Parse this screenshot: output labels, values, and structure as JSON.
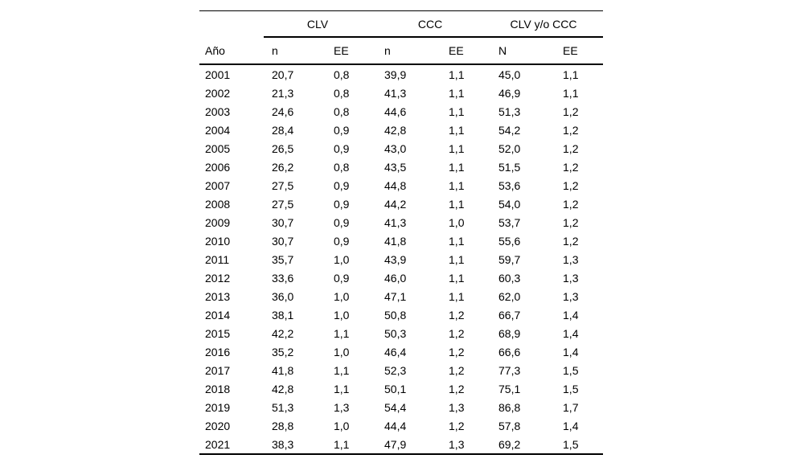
{
  "colors": {
    "background": "#ffffff",
    "text": "#000000",
    "rule": "#000000"
  },
  "chart_data": {
    "type": "table",
    "column_groups": [
      {
        "label": "CLV",
        "span": 2
      },
      {
        "label": "CCC",
        "span": 2
      },
      {
        "label": "CLV y/o CCC",
        "span": 2
      }
    ],
    "columns": [
      "Año",
      "n",
      "EE",
      "n",
      "EE",
      "N",
      "EE"
    ],
    "rows": [
      [
        "2001",
        "20,7",
        "0,8",
        "39,9",
        "1,1",
        "45,0",
        "1,1"
      ],
      [
        "2002",
        "21,3",
        "0,8",
        "41,3",
        "1,1",
        "46,9",
        "1,1"
      ],
      [
        "2003",
        "24,6",
        "0,8",
        "44,6",
        "1,1",
        "51,3",
        "1,2"
      ],
      [
        "2004",
        "28,4",
        "0,9",
        "42,8",
        "1,1",
        "54,2",
        "1,2"
      ],
      [
        "2005",
        "26,5",
        "0,9",
        "43,0",
        "1,1",
        "52,0",
        "1,2"
      ],
      [
        "2006",
        "26,2",
        "0,8",
        "43,5",
        "1,1",
        "51,5",
        "1,2"
      ],
      [
        "2007",
        "27,5",
        "0,9",
        "44,8",
        "1,1",
        "53,6",
        "1,2"
      ],
      [
        "2008",
        "27,5",
        "0,9",
        "44,2",
        "1,1",
        "54,0",
        "1,2"
      ],
      [
        "2009",
        "30,7",
        "0,9",
        "41,3",
        "1,0",
        "53,7",
        "1,2"
      ],
      [
        "2010",
        "30,7",
        "0,9",
        "41,8",
        "1,1",
        "55,6",
        "1,2"
      ],
      [
        "2011",
        "35,7",
        "1,0",
        "43,9",
        "1,1",
        "59,7",
        "1,3"
      ],
      [
        "2012",
        "33,6",
        "0,9",
        "46,0",
        "1,1",
        "60,3",
        "1,3"
      ],
      [
        "2013",
        "36,0",
        "1,0",
        "47,1",
        "1,1",
        "62,0",
        "1,3"
      ],
      [
        "2014",
        "38,1",
        "1,0",
        "50,8",
        "1,2",
        "66,7",
        "1,4"
      ],
      [
        "2015",
        "42,2",
        "1,1",
        "50,3",
        "1,2",
        "68,9",
        "1,4"
      ],
      [
        "2016",
        "35,2",
        "1,0",
        "46,4",
        "1,2",
        "66,6",
        "1,4"
      ],
      [
        "2017",
        "41,8",
        "1,1",
        "52,3",
        "1,2",
        "77,3",
        "1,5"
      ],
      [
        "2018",
        "42,8",
        "1,1",
        "50,1",
        "1,2",
        "75,1",
        "1,5"
      ],
      [
        "2019",
        "51,3",
        "1,3",
        "54,4",
        "1,3",
        "86,8",
        "1,7"
      ],
      [
        "2020",
        "28,8",
        "1,0",
        "44,4",
        "1,2",
        "57,8",
        "1,4"
      ],
      [
        "2021",
        "38,3",
        "1,1",
        "47,9",
        "1,3",
        "69,2",
        "1,5"
      ]
    ]
  }
}
